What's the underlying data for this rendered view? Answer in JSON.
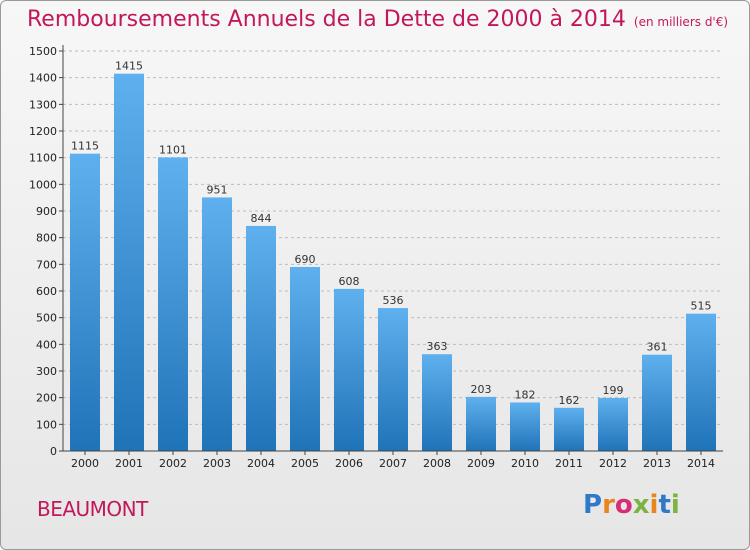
{
  "header": {
    "title": "Remboursements Annuels de la Dette de 2000 à 2014",
    "subtitle": "(en milliers d'€)"
  },
  "footer": {
    "commune": "BEAUMONT",
    "logo_letters": [
      "P",
      "r",
      "o",
      "x",
      "i",
      "t",
      "i"
    ],
    "logo_colors": [
      "#2e7ac8",
      "#e8851f",
      "#d62d74",
      "#7cb342",
      "#e8851f",
      "#2e7ac8",
      "#7cb342"
    ]
  },
  "colors": {
    "accent": "#c2185b",
    "bar_top": "#5fb0ee",
    "bar_bottom": "#1f73b7",
    "grid": "#bdbdbd"
  },
  "chart_data": {
    "type": "bar",
    "title": "Remboursements Annuels de la Dette de 2000 à 2014",
    "subtitle": "(en milliers d'€)",
    "categories": [
      "2000",
      "2001",
      "2002",
      "2003",
      "2004",
      "2005",
      "2006",
      "2007",
      "2008",
      "2009",
      "2010",
      "2011",
      "2012",
      "2013",
      "2014"
    ],
    "values": [
      1115,
      1415,
      1101,
      951,
      844,
      690,
      608,
      536,
      363,
      203,
      182,
      162,
      199,
      361,
      515
    ],
    "ylim": [
      0,
      1500
    ],
    "yticks": [
      0,
      100,
      200,
      300,
      400,
      500,
      600,
      700,
      800,
      900,
      1000,
      1100,
      1200,
      1300,
      1400,
      1500
    ],
    "grid": true,
    "data_labels": true
  }
}
